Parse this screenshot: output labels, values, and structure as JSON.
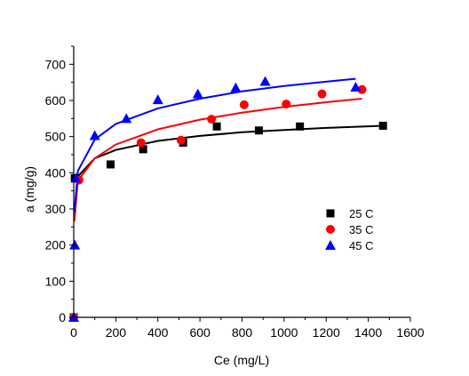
{
  "chart_data": {
    "type": "scatter",
    "xlabel": "Ce (mg/L)",
    "ylabel": "a (mg/g)",
    "xlim": [
      0,
      1600
    ],
    "ylim": [
      0,
      750
    ],
    "xticks": [
      0,
      200,
      400,
      600,
      800,
      1000,
      1200,
      1400,
      1600
    ],
    "yticks": [
      0,
      100,
      200,
      300,
      400,
      500,
      600,
      700
    ],
    "grid": false,
    "legend_position": "right-middle",
    "series": [
      {
        "name": "25 C",
        "marker": "square",
        "color": "#000000",
        "points": [
          [
            0,
            0
          ],
          [
            5,
            385
          ],
          [
            175,
            423
          ],
          [
            330,
            465
          ],
          [
            520,
            483
          ],
          [
            680,
            528
          ],
          [
            880,
            517
          ],
          [
            1075,
            528
          ],
          [
            1470,
            530
          ]
        ],
        "fit": [
          [
            3,
            290
          ],
          [
            20,
            390
          ],
          [
            100,
            440
          ],
          [
            200,
            463
          ],
          [
            400,
            488
          ],
          [
            600,
            502
          ],
          [
            800,
            512
          ],
          [
            1000,
            518
          ],
          [
            1200,
            524
          ],
          [
            1470,
            530
          ]
        ]
      },
      {
        "name": "35 C",
        "marker": "circle",
        "color": "#ff0000",
        "points": [
          [
            0,
            0
          ],
          [
            25,
            380
          ],
          [
            320,
            483
          ],
          [
            510,
            490
          ],
          [
            655,
            548
          ],
          [
            810,
            588
          ],
          [
            1010,
            590
          ],
          [
            1180,
            618
          ],
          [
            1370,
            630
          ]
        ],
        "fit": [
          [
            3,
            265
          ],
          [
            20,
            378
          ],
          [
            100,
            440
          ],
          [
            200,
            478
          ],
          [
            400,
            520
          ],
          [
            600,
            547
          ],
          [
            800,
            566
          ],
          [
            1000,
            582
          ],
          [
            1200,
            595
          ],
          [
            1370,
            605
          ]
        ]
      },
      {
        "name": "45 C",
        "marker": "triangle",
        "color": "#0000ff",
        "points": [
          [
            0,
            0
          ],
          [
            5,
            200
          ],
          [
            10,
            385
          ],
          [
            100,
            503
          ],
          [
            250,
            550
          ],
          [
            400,
            602
          ],
          [
            590,
            618
          ],
          [
            770,
            635
          ],
          [
            910,
            653
          ],
          [
            1340,
            637
          ]
        ],
        "fit": [
          [
            3,
            290
          ],
          [
            20,
            405
          ],
          [
            100,
            492
          ],
          [
            200,
            535
          ],
          [
            400,
            578
          ],
          [
            600,
            605
          ],
          [
            800,
            625
          ],
          [
            1000,
            640
          ],
          [
            1200,
            652
          ],
          [
            1340,
            660
          ]
        ]
      }
    ]
  }
}
